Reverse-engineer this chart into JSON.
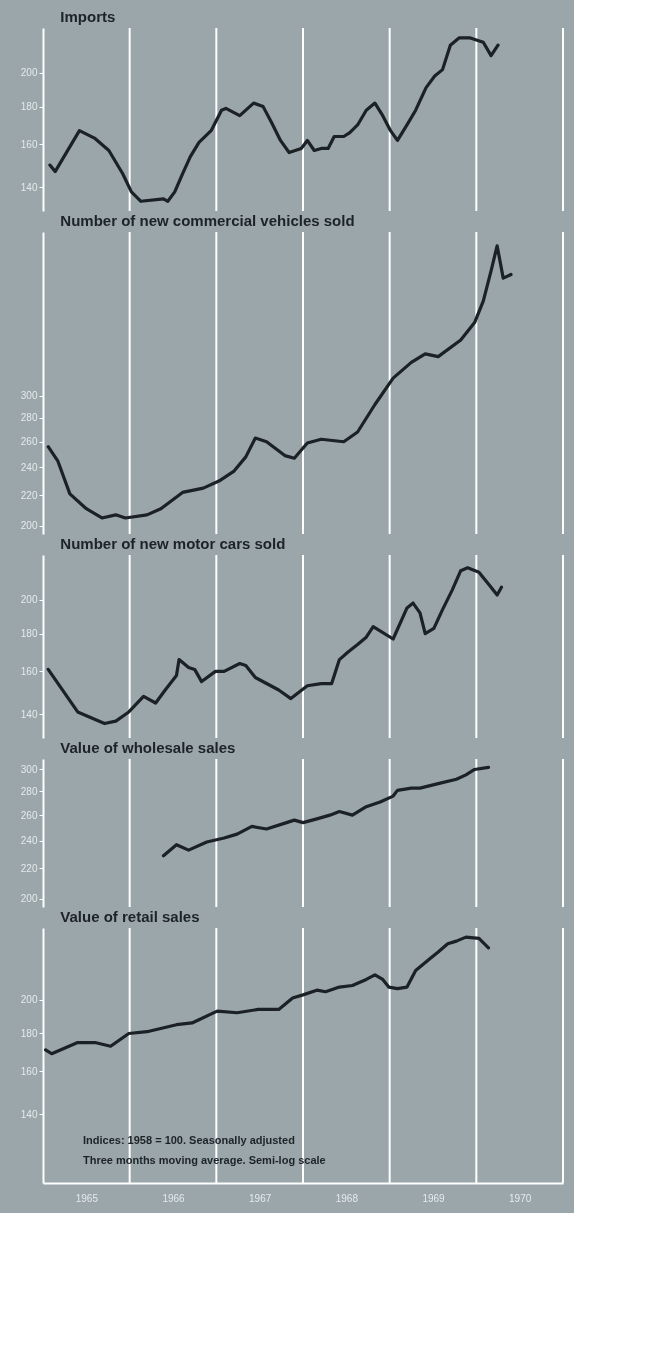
{
  "chart_data": [
    {
      "type": "line",
      "title": "Imports",
      "log": true,
      "tick_labels": "y",
      "marker": "none",
      "line_style": "solid",
      "grid": false,
      "x": [
        1965.08,
        1965.14,
        1965.42,
        1965.6,
        1965.76,
        1965.92,
        1966.02,
        1966.13,
        1966.39,
        1966.44,
        1966.52,
        1966.61,
        1966.7,
        1966.8,
        1966.94,
        1967.06,
        1967.11,
        1967.27,
        1967.43,
        1967.54,
        1967.64,
        1967.74,
        1967.84,
        1967.98,
        1968.05,
        1968.13,
        1968.21,
        1968.29,
        1968.36,
        1968.47,
        1968.54,
        1968.63,
        1968.73,
        1968.83,
        1968.92,
        1969.01,
        1969.09,
        1969.2,
        1969.3,
        1969.42,
        1969.52,
        1969.61,
        1969.7,
        1969.8,
        1969.93,
        1970.08,
        1970.17,
        1970.25
      ],
      "series": [
        {
          "color": "#1b2124",
          "values": [
            150,
            147,
            167,
            163,
            157,
            146,
            138,
            134,
            135,
            134,
            138,
            146,
            154,
            161,
            167,
            178,
            179,
            175,
            182,
            180,
            171,
            162,
            156,
            158,
            162,
            157,
            158,
            158,
            164,
            164,
            166,
            170,
            178,
            182,
            175,
            167,
            162,
            170,
            178,
            191,
            198,
            202,
            218,
            223,
            223,
            220,
            211,
            218
          ]
        }
      ],
      "xlim": [
        1965,
        1971
      ],
      "ylim": [
        130,
        230
      ],
      "yticks": [
        140,
        160,
        180,
        200
      ],
      "ref_lines": [
        {
          "axis": "x",
          "value": 1966,
          "color": "#ffffff"
        },
        {
          "axis": "x",
          "value": 1967,
          "color": "#ffffff"
        },
        {
          "axis": "x",
          "value": 1968,
          "color": "#ffffff"
        },
        {
          "axis": "x",
          "value": 1969,
          "color": "#ffffff"
        },
        {
          "axis": "x",
          "value": 1970,
          "color": "#ffffff"
        },
        {
          "axis": "x",
          "value": 1971,
          "color": "#ffffff"
        }
      ]
    },
    {
      "type": "line",
      "title": "Number of new commercial vehicles sold",
      "log": true,
      "tick_labels": "y",
      "marker": "none",
      "line_style": "solid",
      "grid": false,
      "x": [
        1965.06,
        1965.17,
        1965.31,
        1965.5,
        1965.68,
        1965.84,
        1965.95,
        1966.2,
        1966.36,
        1966.61,
        1966.85,
        1967.03,
        1967.2,
        1967.34,
        1967.45,
        1967.58,
        1967.79,
        1967.9,
        1968.05,
        1968.21,
        1968.47,
        1968.63,
        1968.83,
        1969.04,
        1969.25,
        1969.41,
        1969.56,
        1969.82,
        1969.98,
        1970.08,
        1970.17,
        1970.24,
        1970.31,
        1970.4
      ],
      "series": [
        {
          "color": "#1b2124",
          "values": [
            256,
            245,
            221,
            211,
            205,
            207,
            205,
            207,
            211,
            222,
            225,
            230,
            237,
            248,
            263,
            260,
            249,
            247,
            259,
            262,
            260,
            268,
            292,
            317,
            333,
            342,
            339,
            357,
            377,
            403,
            443,
            479,
            433,
            438
          ]
        }
      ],
      "xlim": [
        1965,
        1971
      ],
      "ylim": [
        195,
        500
      ],
      "yticks": [
        200,
        220,
        240,
        260,
        280,
        300
      ],
      "ref_lines": [
        {
          "axis": "x",
          "value": 1966,
          "color": "#ffffff"
        },
        {
          "axis": "x",
          "value": 1967,
          "color": "#ffffff"
        },
        {
          "axis": "x",
          "value": 1968,
          "color": "#ffffff"
        },
        {
          "axis": "x",
          "value": 1969,
          "color": "#ffffff"
        },
        {
          "axis": "x",
          "value": 1970,
          "color": "#ffffff"
        },
        {
          "axis": "x",
          "value": 1971,
          "color": "#ffffff"
        }
      ]
    },
    {
      "type": "line",
      "title": "Number of new motor cars sold",
      "log": true,
      "tick_labels": "y",
      "marker": "none",
      "line_style": "solid",
      "grid": false,
      "x": [
        1965.06,
        1965.4,
        1965.71,
        1965.84,
        1965.99,
        1966.16,
        1966.3,
        1966.41,
        1966.54,
        1966.57,
        1966.68,
        1966.75,
        1966.83,
        1966.99,
        1967.09,
        1967.27,
        1967.34,
        1967.45,
        1967.72,
        1967.86,
        1968.05,
        1968.21,
        1968.33,
        1968.42,
        1968.52,
        1968.63,
        1968.73,
        1968.81,
        1969.04,
        1969.2,
        1969.27,
        1969.35,
        1969.41,
        1969.51,
        1969.61,
        1969.72,
        1969.82,
        1969.9,
        1970.03,
        1970.17,
        1970.24,
        1970.29
      ],
      "series": [
        {
          "color": "#1b2124",
          "values": [
            161,
            141,
            136,
            137,
            141,
            148,
            145,
            151,
            158,
            166,
            162,
            161,
            155,
            160,
            160,
            164,
            163,
            157,
            151,
            147,
            153,
            154,
            154,
            166,
            170,
            174,
            178,
            184,
            177,
            195,
            198,
            192,
            180,
            183,
            194,
            206,
            219,
            221,
            218,
            208,
            203,
            208
          ]
        }
      ],
      "xlim": [
        1965,
        1971
      ],
      "ylim": [
        130,
        230
      ],
      "yticks": [
        140,
        160,
        180,
        200
      ],
      "ref_lines": [
        {
          "axis": "x",
          "value": 1966,
          "color": "#ffffff"
        },
        {
          "axis": "x",
          "value": 1967,
          "color": "#ffffff"
        },
        {
          "axis": "x",
          "value": 1968,
          "color": "#ffffff"
        },
        {
          "axis": "x",
          "value": 1969,
          "color": "#ffffff"
        },
        {
          "axis": "x",
          "value": 1970,
          "color": "#ffffff"
        },
        {
          "axis": "x",
          "value": 1971,
          "color": "#ffffff"
        }
      ]
    },
    {
      "type": "line",
      "title": "Value of wholesale sales",
      "log": true,
      "tick_labels": "y",
      "marker": "none",
      "line_style": "solid",
      "grid": false,
      "x": [
        1966.39,
        1966.54,
        1966.68,
        1966.89,
        1967.09,
        1967.24,
        1967.41,
        1967.58,
        1967.81,
        1967.9,
        1968.0,
        1968.16,
        1968.31,
        1968.42,
        1968.57,
        1968.73,
        1968.89,
        1969.04,
        1969.09,
        1969.25,
        1969.35,
        1969.56,
        1969.77,
        1969.88,
        1969.98,
        1970.14
      ],
      "series": [
        {
          "color": "#1b2124",
          "values": [
            229,
            237,
            233,
            239,
            242,
            245,
            251,
            249,
            254,
            256,
            254,
            257,
            260,
            263,
            260,
            267,
            271,
            276,
            281,
            283,
            283,
            287,
            291,
            295,
            300,
            302
          ]
        }
      ],
      "xlim": [
        1965,
        1971
      ],
      "ylim": [
        195,
        310
      ],
      "yticks": [
        200,
        220,
        240,
        260,
        280,
        300
      ],
      "ref_lines": [
        {
          "axis": "x",
          "value": 1966,
          "color": "#ffffff"
        },
        {
          "axis": "x",
          "value": 1967,
          "color": "#ffffff"
        },
        {
          "axis": "x",
          "value": 1968,
          "color": "#ffffff"
        },
        {
          "axis": "x",
          "value": 1969,
          "color": "#ffffff"
        },
        {
          "axis": "x",
          "value": 1970,
          "color": "#ffffff"
        },
        {
          "axis": "x",
          "value": 1971,
          "color": "#ffffff"
        }
      ]
    },
    {
      "type": "line",
      "title": "Value of retail sales",
      "log": true,
      "marker": "none",
      "line_style": "solid",
      "grid": false,
      "x": [
        1965.03,
        1965.1,
        1965.4,
        1965.6,
        1965.78,
        1965.99,
        1966.2,
        1966.54,
        1966.72,
        1967.01,
        1967.24,
        1967.48,
        1967.72,
        1967.88,
        1968.0,
        1968.16,
        1968.26,
        1968.42,
        1968.57,
        1968.73,
        1968.83,
        1968.92,
        1968.99,
        1969.09,
        1969.2,
        1969.3,
        1969.46,
        1969.56,
        1969.67,
        1969.77,
        1969.88,
        1970.03,
        1970.14
      ],
      "series": [
        {
          "color": "#1b2124",
          "values": [
            171,
            169,
            175,
            175,
            173,
            180,
            181,
            185,
            186,
            193,
            192,
            194,
            194,
            201,
            203,
            206,
            205,
            208,
            209,
            213,
            216,
            213,
            208,
            207,
            208,
            219,
            227,
            232,
            238,
            240,
            243,
            242,
            235
          ]
        }
      ],
      "xlim": [
        1965,
        1971
      ],
      "ylim": [
        113,
        250
      ],
      "yticks": [
        140,
        160,
        180,
        200
      ],
      "xticks": [
        {
          "value": 1965.5,
          "label": "1965"
        },
        {
          "value": 1966.5,
          "label": "1966"
        },
        {
          "value": 1967.5,
          "label": "1967"
        },
        {
          "value": 1968.5,
          "label": "1968"
        },
        {
          "value": 1969.5,
          "label": "1969"
        },
        {
          "value": 1970.5,
          "label": "1970"
        }
      ],
      "ref_lines": [
        {
          "axis": "x",
          "value": 1966,
          "color": "#ffffff"
        },
        {
          "axis": "x",
          "value": 1967,
          "color": "#ffffff"
        },
        {
          "axis": "x",
          "value": 1968,
          "color": "#ffffff"
        },
        {
          "axis": "x",
          "value": 1969,
          "color": "#ffffff"
        },
        {
          "axis": "x",
          "value": 1970,
          "color": "#ffffff"
        },
        {
          "axis": "x",
          "value": 1971,
          "color": "#ffffff"
        }
      ],
      "annotations": [
        "Indices: 1958 = 100. Seasonally adjusted",
        "Three months moving average. Semi-log scale"
      ]
    }
  ]
}
